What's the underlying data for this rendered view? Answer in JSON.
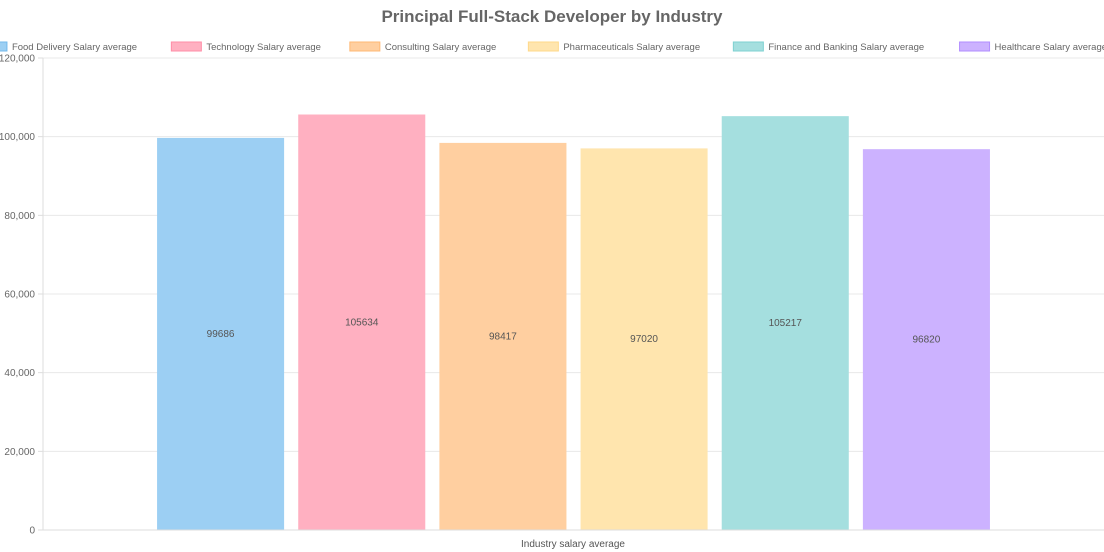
{
  "chart_data": {
    "type": "bar",
    "title": "Principal Full-Stack Developer by Industry",
    "xlabel": "Industry salary average",
    "ylabel": "",
    "ylim": [
      0,
      120000
    ],
    "yticks": [
      "0",
      "20,000",
      "40,000",
      "60,000",
      "80,000",
      "100,000",
      "120,000"
    ],
    "ytick_values": [
      0,
      20000,
      40000,
      60000,
      80000,
      100000,
      120000
    ],
    "grid": true,
    "legend_position": "top",
    "categories": [
      "Industry salary average"
    ],
    "series": [
      {
        "name": "Food Delivery Salary average",
        "values": [
          99686
        ],
        "label": "99686",
        "color": "#9ccff3",
        "border": "#73b9eb"
      },
      {
        "name": "Technology Salary average",
        "values": [
          105634
        ],
        "label": "105634",
        "color": "#ffb0c1",
        "border": "#ff8ea7"
      },
      {
        "name": "Consulting Salary average",
        "values": [
          98417
        ],
        "label": "98417",
        "color": "#ffcfa0",
        "border": "#ffb874"
      },
      {
        "name": "Pharmaceuticals Salary average",
        "values": [
          97020
        ],
        "label": "97020",
        "color": "#ffe5ae",
        "border": "#ffd98a"
      },
      {
        "name": "Finance and Banking Salary average",
        "values": [
          105217
        ],
        "label": "105217",
        "color": "#a5dfdf",
        "border": "#7ed1d1"
      },
      {
        "name": "Healthcare Salary average",
        "values": [
          96820
        ],
        "label": "96820",
        "color": "#ccb2ff",
        "border": "#b28eff"
      }
    ]
  }
}
